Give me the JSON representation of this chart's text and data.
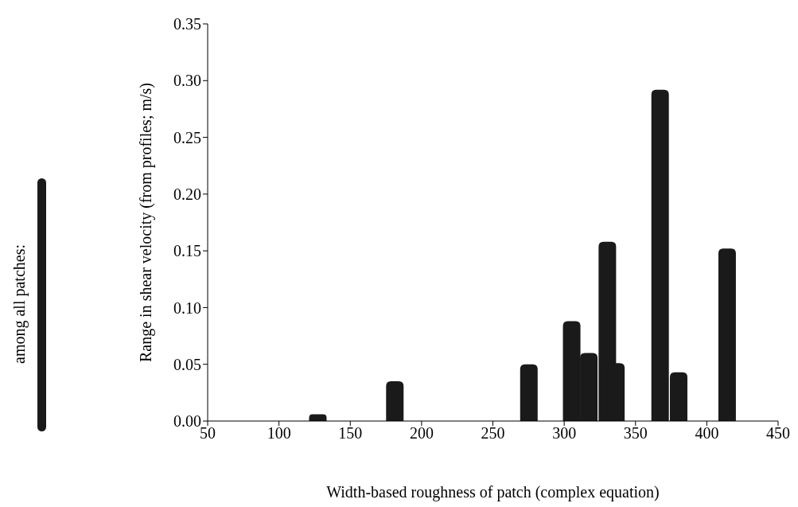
{
  "chart_data": {
    "type": "bar",
    "xlabel": "Width-based roughness of patch (complex equation)",
    "ylabel": "Range in shear velocity (from profiles; m/s)",
    "annotations": [
      "among all patches:"
    ],
    "x": [
      127,
      181,
      275,
      305,
      317,
      330,
      336,
      367,
      380,
      414
    ],
    "series": [
      {
        "color": "#1a1a1a",
        "values": [
          0.006,
          0.035,
          0.05,
          0.088,
          0.06,
          0.158,
          0.051,
          0.292,
          0.043,
          0.152
        ]
      }
    ],
    "xlim": [
      50,
      450
    ],
    "xticks": [
      50,
      100,
      150,
      200,
      250,
      300,
      350,
      400,
      450
    ],
    "ylim": [
      0,
      0.35
    ],
    "yticks": [
      {
        "value": 0,
        "label": "0.00"
      },
      {
        "value": 0.05,
        "label": "0.05"
      },
      {
        "value": 0.1,
        "label": "0.10"
      },
      {
        "value": 0.15,
        "label": "0.15"
      },
      {
        "value": 0.2,
        "label": "0.20"
      },
      {
        "value": 0.25,
        "label": "0.25"
      },
      {
        "value": 0.3,
        "label": "0.30"
      },
      {
        "value": 0.35,
        "label": "0.35"
      }
    ],
    "grid": false
  }
}
